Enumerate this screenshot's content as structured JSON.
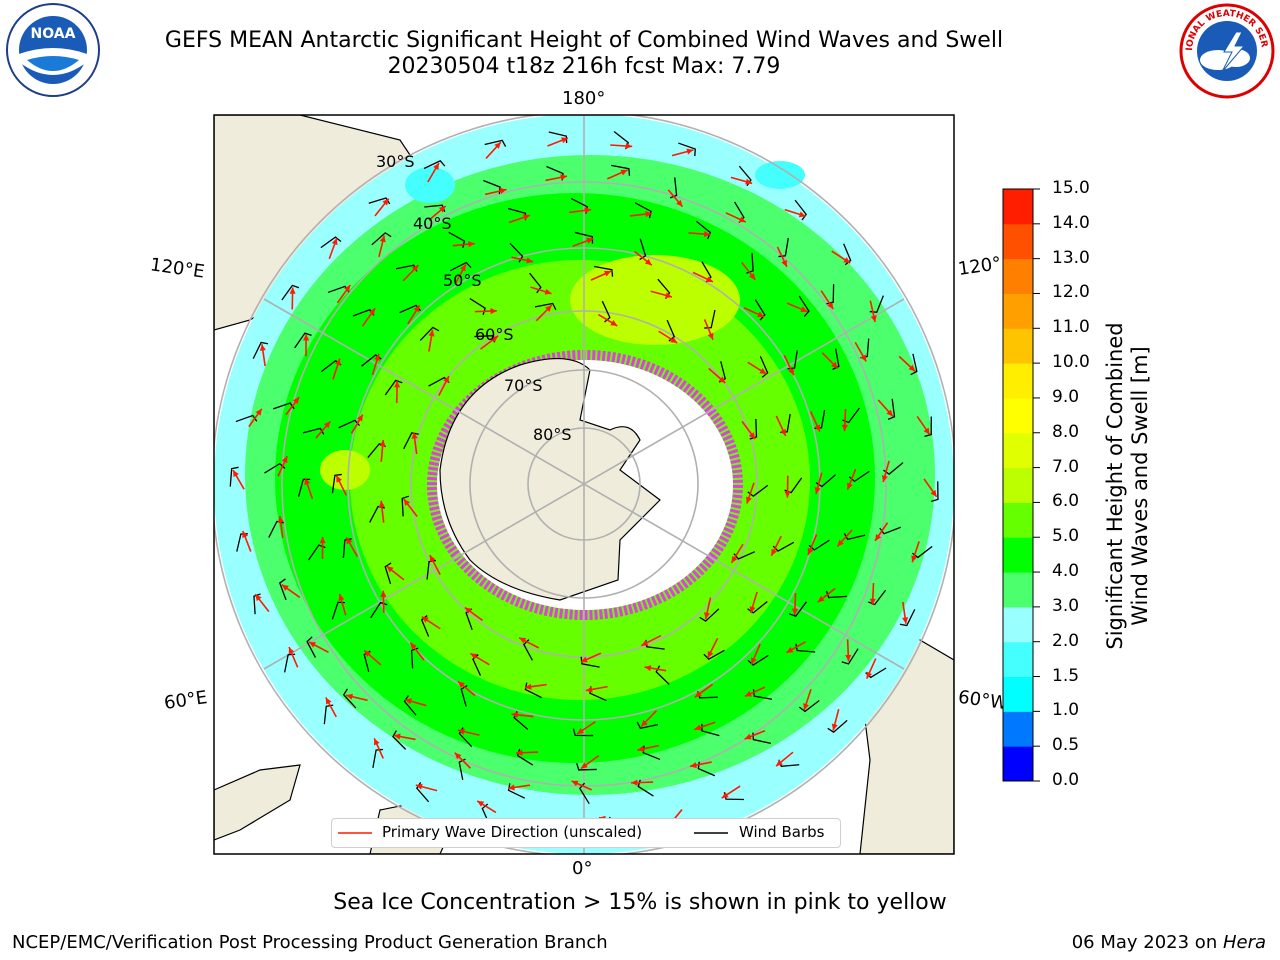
{
  "title": {
    "line1": "GEFS MEAN Antarctic Significant Height of Combined Wind Waves and Swell",
    "line2": "20230504 t18z 216h fcst   Max: 7.79"
  },
  "logos": {
    "left": {
      "icon": "noaa-logo",
      "text": "NOAA"
    },
    "right": {
      "icon": "nws-logo",
      "text": "NATIONAL WEATHER SERVICE"
    }
  },
  "map": {
    "projection": "south-polar-stereographic",
    "longitude_labels": [
      "180°",
      "120°E",
      "120°",
      "60°E",
      "60°W",
      "0°"
    ],
    "latitude_labels": [
      "30°S",
      "40°S",
      "50°S",
      "60°S",
      "70°S",
      "80°S"
    ],
    "colors": {
      "land": "#efecdc",
      "ice_shelf": "#ffffff",
      "sea_ice": "#e040e0",
      "grid": "#b0b0b0",
      "arrow": "#ff1a00",
      "barb": "#000000"
    }
  },
  "legend": {
    "wave_direction": "Primary Wave Direction (unscaled)",
    "wind_barbs": "Wind Barbs"
  },
  "colorbar": {
    "label": "Significant Height of Combined Wind Waves and Swell [m]",
    "ticks": [
      "15.0",
      "14.0",
      "13.0",
      "12.0",
      "11.0",
      "10.0",
      "9.0",
      "8.0",
      "7.0",
      "6.0",
      "5.0",
      "4.0",
      "3.0",
      "2.0",
      "1.5",
      "1.0",
      "0.5",
      "0.0"
    ],
    "colors_bottom_to_top": [
      "#0000ff",
      "#0078ff",
      "#00ffff",
      "#45ffff",
      "#9affff",
      "#4cff6c",
      "#00ff00",
      "#66ff00",
      "#bbff00",
      "#e0ff00",
      "#ffff00",
      "#ffee00",
      "#ffc400",
      "#ffa000",
      "#ff8000",
      "#ff5000",
      "#ff1e00"
    ]
  },
  "caption": "Sea Ice Concentration > 15% is shown in pink to yellow",
  "footer": {
    "left": "NCEP/EMC/Verification Post Processing Product Generation Branch",
    "date": "06 May 2023 on ",
    "machine": "Hera"
  }
}
